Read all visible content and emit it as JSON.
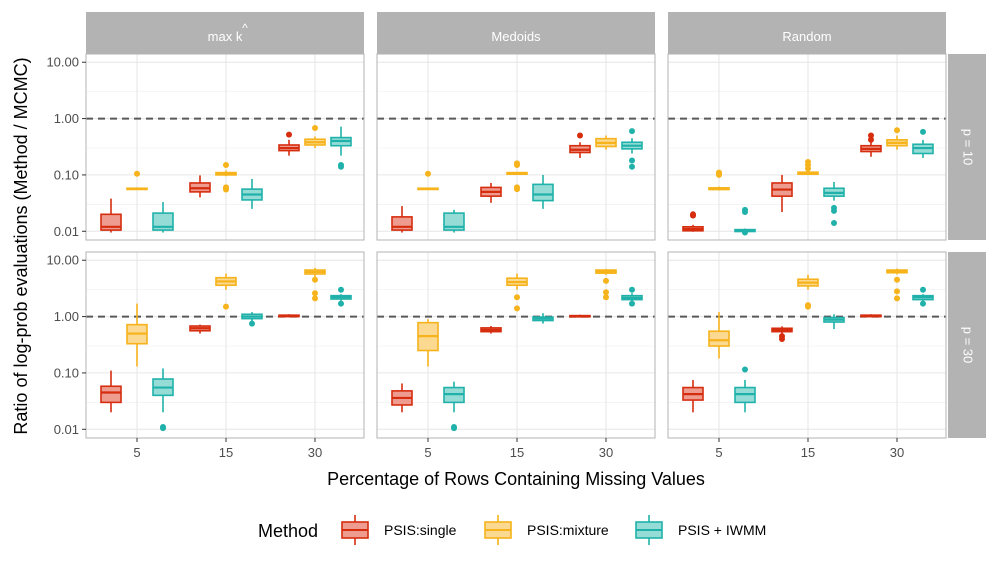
{
  "chart_data": {
    "type": "boxplot",
    "facet_cols": [
      "max k-hat",
      "Medoids",
      "Random"
    ],
    "facet_col_labels": [
      {
        "main": "max k",
        "hat": "^"
      },
      {
        "main": "Medoids",
        "hat": ""
      },
      {
        "main": "Random",
        "hat": ""
      }
    ],
    "facet_rows": [
      "p = 10",
      "p = 30"
    ],
    "x_categories": [
      "5",
      "15",
      "30"
    ],
    "xlabel": "Percentage of Rows Containing Missing Values",
    "ylabel": "Ratio of log-prob evaluations (Method / MCMC)",
    "y_scale": "log10",
    "ylim": [
      0.007,
      14
    ],
    "y_ticks": [
      0.01,
      0.1,
      1,
      10
    ],
    "y_tick_labels": [
      "0.01",
      "0.10",
      "1.00",
      "10.00"
    ],
    "reference_line": 1.0,
    "legend": {
      "title": "Method",
      "position": "bottom",
      "entries": [
        "PSIS:single",
        "PSIS:mixture",
        "PSIS + IWMM"
      ]
    },
    "series": [
      {
        "name": "PSIS:single",
        "color": "#d62d0f",
        "fill": "#ee9c8f"
      },
      {
        "name": "PSIS:mixture",
        "color": "#f6b31b",
        "fill": "#fbd990"
      },
      {
        "name": "PSIS + IWMM",
        "color": "#20b2aa",
        "fill": "#95dcd7"
      }
    ],
    "panels": [
      {
        "col": "max k-hat",
        "row": "p = 10",
        "boxes": [
          {
            "series": 0,
            "x": "5",
            "wlo": 0.0095,
            "q1": 0.0105,
            "med": 0.012,
            "q3": 0.02,
            "whi": 0.038,
            "out": []
          },
          {
            "series": 1,
            "x": "5",
            "wlo": 0.054,
            "q1": 0.056,
            "med": 0.057,
            "q3": 0.058,
            "whi": 0.06,
            "out": [
              0.105
            ]
          },
          {
            "series": 2,
            "x": "5",
            "wlo": 0.0095,
            "q1": 0.0105,
            "med": 0.012,
            "q3": 0.021,
            "whi": 0.033,
            "out": []
          },
          {
            "series": 0,
            "x": "15",
            "wlo": 0.04,
            "q1": 0.05,
            "med": 0.058,
            "q3": 0.072,
            "whi": 0.098,
            "out": []
          },
          {
            "series": 1,
            "x": "15",
            "wlo": 0.095,
            "q1": 0.1,
            "med": 0.105,
            "q3": 0.11,
            "whi": 0.12,
            "out": [
              0.15,
              0.06,
              0.055
            ]
          },
          {
            "series": 2,
            "x": "15",
            "wlo": 0.025,
            "q1": 0.036,
            "med": 0.045,
            "q3": 0.056,
            "whi": 0.085,
            "out": []
          },
          {
            "series": 0,
            "x": "30",
            "wlo": 0.22,
            "q1": 0.27,
            "med": 0.3,
            "q3": 0.34,
            "whi": 0.42,
            "out": [
              0.52
            ]
          },
          {
            "series": 1,
            "x": "30",
            "wlo": 0.3,
            "q1": 0.34,
            "med": 0.38,
            "q3": 0.43,
            "whi": 0.48,
            "out": [
              0.68
            ]
          },
          {
            "series": 2,
            "x": "30",
            "wlo": 0.22,
            "q1": 0.33,
            "med": 0.4,
            "q3": 0.46,
            "whi": 0.72,
            "out": [
              0.15,
              0.14
            ]
          }
        ]
      },
      {
        "col": "Medoids",
        "row": "p = 10",
        "boxes": [
          {
            "series": 0,
            "x": "5",
            "wlo": 0.0095,
            "q1": 0.0105,
            "med": 0.012,
            "q3": 0.018,
            "whi": 0.028,
            "out": []
          },
          {
            "series": 1,
            "x": "5",
            "wlo": 0.054,
            "q1": 0.056,
            "med": 0.057,
            "q3": 0.058,
            "whi": 0.06,
            "out": [
              0.105
            ]
          },
          {
            "series": 2,
            "x": "5",
            "wlo": 0.0095,
            "q1": 0.0105,
            "med": 0.012,
            "q3": 0.021,
            "whi": 0.024,
            "out": []
          },
          {
            "series": 0,
            "x": "15",
            "wlo": 0.032,
            "q1": 0.042,
            "med": 0.05,
            "q3": 0.06,
            "whi": 0.072,
            "out": []
          },
          {
            "series": 1,
            "x": "15",
            "wlo": 0.1,
            "q1": 0.103,
            "med": 0.106,
            "q3": 0.11,
            "whi": 0.113,
            "out": [
              0.16,
              0.15,
              0.06,
              0.056
            ]
          },
          {
            "series": 2,
            "x": "15",
            "wlo": 0.025,
            "q1": 0.035,
            "med": 0.045,
            "q3": 0.068,
            "whi": 0.1,
            "out": []
          },
          {
            "series": 0,
            "x": "30",
            "wlo": 0.2,
            "q1": 0.25,
            "med": 0.28,
            "q3": 0.33,
            "whi": 0.38,
            "out": [
              0.5
            ]
          },
          {
            "series": 1,
            "x": "30",
            "wlo": 0.28,
            "q1": 0.32,
            "med": 0.37,
            "q3": 0.44,
            "whi": 0.5,
            "out": []
          },
          {
            "series": 2,
            "x": "30",
            "wlo": 0.24,
            "q1": 0.29,
            "med": 0.33,
            "q3": 0.38,
            "whi": 0.45,
            "out": [
              0.6,
              0.18,
              0.14
            ]
          }
        ]
      },
      {
        "col": "Random",
        "row": "p = 10",
        "boxes": [
          {
            "series": 0,
            "x": "5",
            "wlo": 0.0098,
            "q1": 0.0102,
            "med": 0.011,
            "q3": 0.012,
            "whi": 0.013,
            "out": [
              0.019,
              0.02
            ]
          },
          {
            "series": 1,
            "x": "5",
            "wlo": 0.053,
            "q1": 0.055,
            "med": 0.057,
            "q3": 0.059,
            "whi": 0.062,
            "out": [
              0.11,
              0.105,
              0.1
            ]
          },
          {
            "series": 2,
            "x": "5",
            "wlo": 0.0096,
            "q1": 0.0099,
            "med": 0.0102,
            "q3": 0.0107,
            "whi": 0.0112,
            "out": [
              0.024,
              0.022,
              0.0095
            ]
          },
          {
            "series": 0,
            "x": "15",
            "wlo": 0.022,
            "q1": 0.042,
            "med": 0.055,
            "q3": 0.072,
            "whi": 0.1,
            "out": []
          },
          {
            "series": 1,
            "x": "15",
            "wlo": 0.1,
            "q1": 0.103,
            "med": 0.107,
            "q3": 0.112,
            "whi": 0.118,
            "out": [
              0.17,
              0.15,
              0.13
            ]
          },
          {
            "series": 2,
            "x": "15",
            "wlo": 0.035,
            "q1": 0.042,
            "med": 0.048,
            "q3": 0.058,
            "whi": 0.075,
            "out": [
              0.026,
              0.023,
              0.014
            ]
          },
          {
            "series": 0,
            "x": "30",
            "wlo": 0.21,
            "q1": 0.26,
            "med": 0.29,
            "q3": 0.33,
            "whi": 0.4,
            "out": [
              0.5,
              0.42
            ]
          },
          {
            "series": 1,
            "x": "30",
            "wlo": 0.28,
            "q1": 0.33,
            "med": 0.37,
            "q3": 0.42,
            "whi": 0.5,
            "out": [
              0.62
            ]
          },
          {
            "series": 2,
            "x": "30",
            "wlo": 0.2,
            "q1": 0.24,
            "med": 0.3,
            "q3": 0.35,
            "whi": 0.42,
            "out": [
              0.58
            ]
          }
        ]
      },
      {
        "col": "max k-hat",
        "row": "p = 30",
        "boxes": [
          {
            "series": 0,
            "x": "5",
            "wlo": 0.02,
            "q1": 0.03,
            "med": 0.045,
            "q3": 0.058,
            "whi": 0.11,
            "out": []
          },
          {
            "series": 1,
            "x": "5",
            "wlo": 0.13,
            "q1": 0.33,
            "med": 0.5,
            "q3": 0.72,
            "whi": 1.7,
            "out": []
          },
          {
            "series": 2,
            "x": "5",
            "wlo": 0.02,
            "q1": 0.04,
            "med": 0.055,
            "q3": 0.078,
            "whi": 0.12,
            "out": [
              0.011,
              0.0105
            ]
          },
          {
            "series": 0,
            "x": "15",
            "wlo": 0.5,
            "q1": 0.56,
            "med": 0.62,
            "q3": 0.68,
            "whi": 0.72,
            "out": []
          },
          {
            "series": 1,
            "x": "15",
            "wlo": 3.0,
            "q1": 3.6,
            "med": 4.2,
            "q3": 4.9,
            "whi": 5.8,
            "out": [
              1.5
            ]
          },
          {
            "series": 2,
            "x": "15",
            "wlo": 0.8,
            "q1": 0.92,
            "med": 1.0,
            "q3": 1.1,
            "whi": 1.2,
            "out": [
              0.75
            ]
          },
          {
            "series": 0,
            "x": "30",
            "wlo": 0.98,
            "q1": 1.0,
            "med": 1.02,
            "q3": 1.06,
            "whi": 1.1,
            "out": []
          },
          {
            "series": 1,
            "x": "30",
            "wlo": 5.0,
            "q1": 5.7,
            "med": 6.2,
            "q3": 6.7,
            "whi": 7.3,
            "out": [
              4.5,
              2.6,
              2.1
            ]
          },
          {
            "series": 2,
            "x": "30",
            "wlo": 1.9,
            "q1": 2.05,
            "med": 2.2,
            "q3": 2.35,
            "whi": 2.5,
            "out": [
              3.0,
              1.7
            ]
          }
        ]
      },
      {
        "col": "Medoids",
        "row": "p = 30",
        "boxes": [
          {
            "series": 0,
            "x": "5",
            "wlo": 0.02,
            "q1": 0.027,
            "med": 0.036,
            "q3": 0.048,
            "whi": 0.065,
            "out": []
          },
          {
            "series": 1,
            "x": "5",
            "wlo": 0.13,
            "q1": 0.25,
            "med": 0.45,
            "q3": 0.78,
            "whi": 0.9,
            "out": []
          },
          {
            "series": 2,
            "x": "5",
            "wlo": 0.02,
            "q1": 0.03,
            "med": 0.042,
            "q3": 0.055,
            "whi": 0.07,
            "out": [
              0.011,
              0.0105
            ]
          },
          {
            "series": 0,
            "x": "15",
            "wlo": 0.5,
            "q1": 0.54,
            "med": 0.58,
            "q3": 0.63,
            "whi": 0.68,
            "out": []
          },
          {
            "series": 1,
            "x": "15",
            "wlo": 3.0,
            "q1": 3.6,
            "med": 4.1,
            "q3": 4.8,
            "whi": 5.8,
            "out": [
              2.2,
              1.4
            ]
          },
          {
            "series": 2,
            "x": "15",
            "wlo": 0.75,
            "q1": 0.85,
            "med": 0.92,
            "q3": 0.98,
            "whi": 1.15,
            "out": []
          },
          {
            "series": 0,
            "x": "30",
            "wlo": 0.97,
            "q1": 0.99,
            "med": 1.01,
            "q3": 1.04,
            "whi": 1.08,
            "out": []
          },
          {
            "series": 1,
            "x": "30",
            "wlo": 5.5,
            "q1": 5.9,
            "med": 6.3,
            "q3": 6.7,
            "whi": 7.0,
            "out": [
              4.3,
              2.7,
              2.2
            ]
          },
          {
            "series": 2,
            "x": "30",
            "wlo": 1.85,
            "q1": 2.0,
            "med": 2.15,
            "q3": 2.35,
            "whi": 2.6,
            "out": [
              3.0,
              1.7
            ]
          }
        ]
      },
      {
        "col": "Random",
        "row": "p = 30",
        "boxes": [
          {
            "series": 0,
            "x": "5",
            "wlo": 0.02,
            "q1": 0.033,
            "med": 0.042,
            "q3": 0.055,
            "whi": 0.075,
            "out": []
          },
          {
            "series": 1,
            "x": "5",
            "wlo": 0.18,
            "q1": 0.3,
            "med": 0.38,
            "q3": 0.55,
            "whi": 1.2,
            "out": []
          },
          {
            "series": 2,
            "x": "5",
            "wlo": 0.02,
            "q1": 0.03,
            "med": 0.042,
            "q3": 0.055,
            "whi": 0.075,
            "out": [
              0.115
            ]
          },
          {
            "series": 0,
            "x": "15",
            "wlo": 0.5,
            "q1": 0.54,
            "med": 0.58,
            "q3": 0.62,
            "whi": 0.67,
            "out": [
              0.45,
              0.4
            ]
          },
          {
            "series": 1,
            "x": "15",
            "wlo": 3.0,
            "q1": 3.5,
            "med": 4.0,
            "q3": 4.6,
            "whi": 5.5,
            "out": [
              1.6,
              1.5
            ]
          },
          {
            "series": 2,
            "x": "15",
            "wlo": 0.6,
            "q1": 0.8,
            "med": 0.88,
            "q3": 0.96,
            "whi": 1.1,
            "out": []
          },
          {
            "series": 0,
            "x": "30",
            "wlo": 0.98,
            "q1": 1.0,
            "med": 1.02,
            "q3": 1.06,
            "whi": 1.1,
            "out": []
          },
          {
            "series": 1,
            "x": "30",
            "wlo": 5.6,
            "q1": 6.0,
            "med": 6.3,
            "q3": 6.7,
            "whi": 7.1,
            "out": [
              4.5,
              2.8,
              2.1
            ]
          },
          {
            "series": 2,
            "x": "30",
            "wlo": 1.85,
            "q1": 2.0,
            "med": 2.2,
            "q3": 2.35,
            "whi": 2.5,
            "out": [
              3.0,
              1.7
            ]
          }
        ]
      }
    ]
  }
}
